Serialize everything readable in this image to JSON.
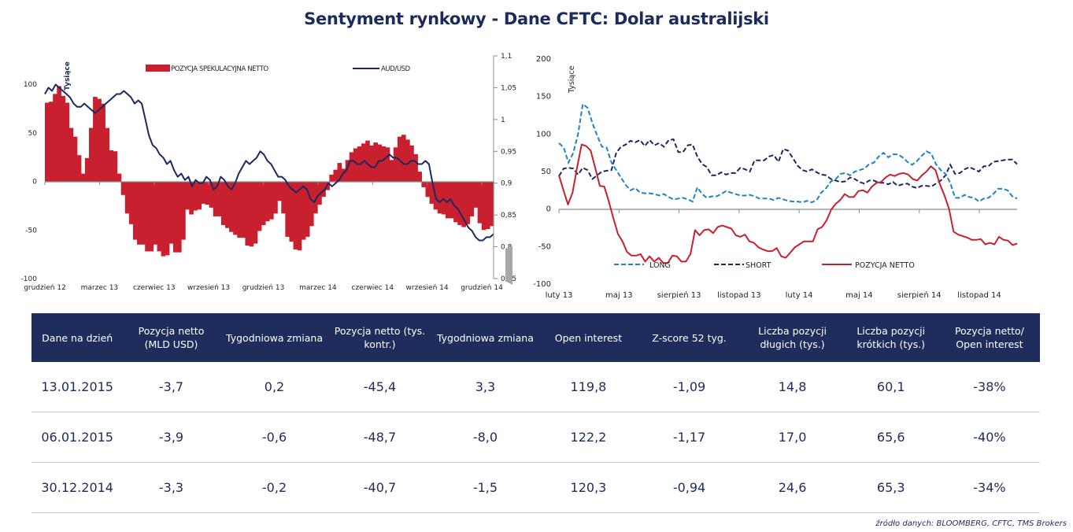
{
  "title": "Sentyment rynkowy - Dane CFTC:  Dolar australijski",
  "colors": {
    "netto_bar": "#c8202f",
    "audusd_line": "#1b2a5e",
    "long_line": "#1f83c6",
    "short_line": "#1b2a5e",
    "netto_line": "#c8202f",
    "header_bg": "#1f2d5c"
  },
  "chart_data": [
    {
      "type": "bar",
      "combo": "bar+line",
      "title": "",
      "ylabel": "Tysiące",
      "ylim": [
        -100,
        100
      ],
      "y_ticks": [
        "100",
        "50",
        "0",
        "-50",
        "-100"
      ],
      "y2lim": [
        0.75,
        1.1
      ],
      "y2_ticks": [
        "1,1",
        "1,05",
        "1",
        "0,95",
        "0,9",
        "0,85",
        "0,8",
        "0,75"
      ],
      "x_ticks": [
        "grudzień 12",
        "marzec 13",
        "czerwiec 13",
        "wrzesień 13",
        "grudzień 13",
        "marzec 14",
        "czerwiec 14",
        "wrzesień 14",
        "grudzień 14"
      ],
      "legend": [
        "POZYCJA SPEKULACYJNA NETTO",
        "AUD/USD"
      ],
      "legend_position": "top",
      "grid": false,
      "series": [
        {
          "name": "POZYCJA SPEKULACYJNA NETTO",
          "axis": "left",
          "kind": "bar",
          "values": [
            81,
            82,
            90,
            98,
            88,
            81,
            55,
            46,
            27,
            8,
            24,
            55,
            87,
            85,
            80,
            55,
            32,
            31,
            8,
            -14,
            -33,
            -44,
            -60,
            -65,
            -65,
            -72,
            -72,
            -65,
            -72,
            -77,
            -76,
            -64,
            -73,
            -73,
            -60,
            -29,
            -34,
            -30,
            -29,
            -23,
            -24,
            -27,
            -36,
            -36,
            -45,
            -48,
            -52,
            -55,
            -58,
            -58,
            -66,
            -67,
            -64,
            -51,
            -45,
            -41,
            -39,
            -33,
            -20,
            -33,
            -57,
            -62,
            -70,
            -71,
            -60,
            -57,
            -46,
            -33,
            -24,
            -16,
            -9,
            7,
            12,
            19,
            13,
            22,
            30,
            34,
            36,
            39,
            42,
            37,
            40,
            38,
            36,
            35,
            22,
            35,
            46,
            48,
            43,
            37,
            28,
            10,
            -6,
            -16,
            -23,
            -29,
            -33,
            -34,
            -38,
            -38,
            -42,
            -45,
            -47,
            -44,
            -36,
            -27,
            -43,
            -50,
            -49,
            -46
          ]
        },
        {
          "name": "AUD/USD",
          "axis": "right",
          "kind": "line",
          "values": [
            1.04,
            1.05,
            1.045,
            1.055,
            1.05,
            1.045,
            1.04,
            1.035,
            1.025,
            1.02,
            1.02,
            1.025,
            1.02,
            1.015,
            1.01,
            1.015,
            1.02,
            1.025,
            1.03,
            1.035,
            1.04,
            1.04,
            1.045,
            1.04,
            1.035,
            1.025,
            1.03,
            1.025,
            1.0,
            0.975,
            0.96,
            0.955,
            0.945,
            0.94,
            0.93,
            0.935,
            0.92,
            0.91,
            0.915,
            0.905,
            0.91,
            0.895,
            0.905,
            0.9,
            0.9,
            0.91,
            0.905,
            0.89,
            0.895,
            0.91,
            0.905,
            0.895,
            0.89,
            0.9,
            0.915,
            0.925,
            0.935,
            0.93,
            0.935,
            0.94,
            0.95,
            0.945,
            0.935,
            0.93,
            0.92,
            0.91,
            0.91,
            0.905,
            0.895,
            0.89,
            0.885,
            0.89,
            0.895,
            0.89,
            0.875,
            0.87,
            0.88,
            0.885,
            0.89,
            0.9,
            0.895,
            0.9,
            0.905,
            0.915,
            0.92,
            0.935,
            0.935,
            0.93,
            0.93,
            0.935,
            0.93,
            0.925,
            0.925,
            0.935,
            0.935,
            0.94,
            0.945,
            0.94,
            0.94,
            0.935,
            0.93,
            0.93,
            0.935,
            0.935,
            0.93,
            0.93,
            0.935,
            0.93,
            0.9,
            0.875,
            0.87,
            0.875,
            0.87,
            0.875,
            0.865,
            0.86,
            0.85,
            0.84,
            0.83,
            0.825,
            0.815,
            0.81,
            0.81,
            0.815,
            0.815,
            0.82
          ]
        }
      ]
    },
    {
      "type": "line",
      "title": "",
      "ylabel": "Tysiące",
      "ylim": [
        -100,
        200
      ],
      "y_ticks": [
        "200",
        "150",
        "100",
        "50",
        "0",
        "-50",
        "-100"
      ],
      "x_ticks": [
        "luty 13",
        "maj 13",
        "sierpień 13",
        "listopad 13",
        "luty 14",
        "maj 14",
        "sierpień 14",
        "listopad 14"
      ],
      "legend": [
        "LONG",
        "SHORT",
        "POZYCJA NETTO"
      ],
      "legend_position": "bottom",
      "grid": false,
      "series": [
        {
          "name": "LONG",
          "style": "dashed",
          "values": [
            88,
            82,
            62,
            75,
            100,
            140,
            135,
            115,
            98,
            83,
            82,
            62,
            52,
            42,
            32,
            25,
            28,
            22,
            21,
            21,
            20,
            18,
            20,
            16,
            13,
            14,
            15,
            13,
            10,
            29,
            20,
            15,
            17,
            17,
            20,
            24,
            22,
            20,
            18,
            18,
            19,
            17,
            14,
            14,
            14,
            12,
            15,
            13,
            11,
            10,
            10,
            9,
            11,
            9,
            12,
            22,
            28,
            37,
            40,
            47,
            48,
            45,
            50,
            52,
            54,
            60,
            62,
            70,
            75,
            69,
            73,
            73,
            69,
            63,
            59,
            64,
            71,
            77,
            74,
            60,
            52,
            47,
            35,
            15,
            15,
            19,
            16,
            15,
            10,
            14,
            15,
            20,
            27,
            27,
            25,
            17,
            14
          ]
        },
        {
          "name": "SHORT",
          "style": "dashed",
          "values": [
            44,
            54,
            55,
            54,
            46,
            55,
            52,
            40,
            45,
            50,
            51,
            52,
            75,
            83,
            86,
            91,
            89,
            92,
            84,
            92,
            85,
            88,
            83,
            92,
            93,
            76,
            76,
            85,
            86,
            70,
            60,
            56,
            45,
            45,
            49,
            46,
            48,
            48,
            55,
            53,
            50,
            65,
            65,
            65,
            70,
            72,
            63,
            80,
            78,
            68,
            58,
            52,
            50,
            53,
            49,
            46,
            45,
            40,
            38,
            36,
            37,
            42,
            40,
            36,
            34,
            38,
            38,
            35,
            35,
            33,
            36,
            31,
            33,
            34,
            30,
            28,
            31,
            31,
            30,
            34,
            38,
            45,
            59,
            47,
            48,
            53,
            56,
            53,
            50,
            57,
            57,
            63,
            64,
            65,
            66,
            66,
            60
          ]
        },
        {
          "name": "POZYCJA NETTO",
          "style": "solid",
          "values": [
            45,
            25,
            6,
            22,
            55,
            86,
            84,
            78,
            55,
            31,
            30,
            10,
            -12,
            -33,
            -43,
            -57,
            -62,
            -62,
            -60,
            -70,
            -63,
            -70,
            -65,
            -72,
            -72,
            -62,
            -63,
            -70,
            -70,
            -60,
            -28,
            -35,
            -28,
            -27,
            -32,
            -24,
            -22,
            -24,
            -26,
            -35,
            -37,
            -34,
            -43,
            -45,
            -51,
            -54,
            -56,
            -56,
            -52,
            -63,
            -65,
            -58,
            -51,
            -47,
            -43,
            -43,
            -43,
            -27,
            -24,
            -15,
            -1,
            7,
            12,
            20,
            16,
            16,
            24,
            25,
            22,
            30,
            35,
            36,
            42,
            46,
            44,
            47,
            48,
            46,
            40,
            38,
            45,
            50,
            57,
            52,
            33,
            18,
            0,
            -30,
            -34,
            -36,
            -38,
            -41,
            -41,
            -40,
            -47,
            -45,
            -47,
            -37,
            -41,
            -42,
            -48,
            -46
          ]
        }
      ]
    }
  ],
  "table": {
    "headers": [
      "Dane na dzień",
      "Pozycja netto (MLD USD)",
      "Tygodniowa zmiana",
      "Pozycja netto (tys. kontr.)",
      "Tygodniowa zmiana",
      "Open interest",
      "Z-score 52 tyg.",
      "Liczba pozycji długich (tys.)",
      "Liczba pozycji krótkich (tys.)",
      "Pozycja netto/ Open interest"
    ],
    "rows": [
      [
        "13.01.2015",
        "-3,7",
        "0,2",
        "-45,4",
        "3,3",
        "119,8",
        "-1,09",
        "14,8",
        "60,1",
        "-38%"
      ],
      [
        "06.01.2015",
        "-3,9",
        "-0,6",
        "-48,7",
        "-8,0",
        "122,2",
        "-1,17",
        "17,0",
        "65,6",
        "-40%"
      ],
      [
        "30.12.2014",
        "-3,3",
        "-0,2",
        "-40,7",
        "-1,5",
        "120,3",
        "-0,94",
        "24,6",
        "65,3",
        "-34%"
      ]
    ]
  },
  "source": "źródło danych: BLOOMBERG, CFTC, TMS Brokers"
}
